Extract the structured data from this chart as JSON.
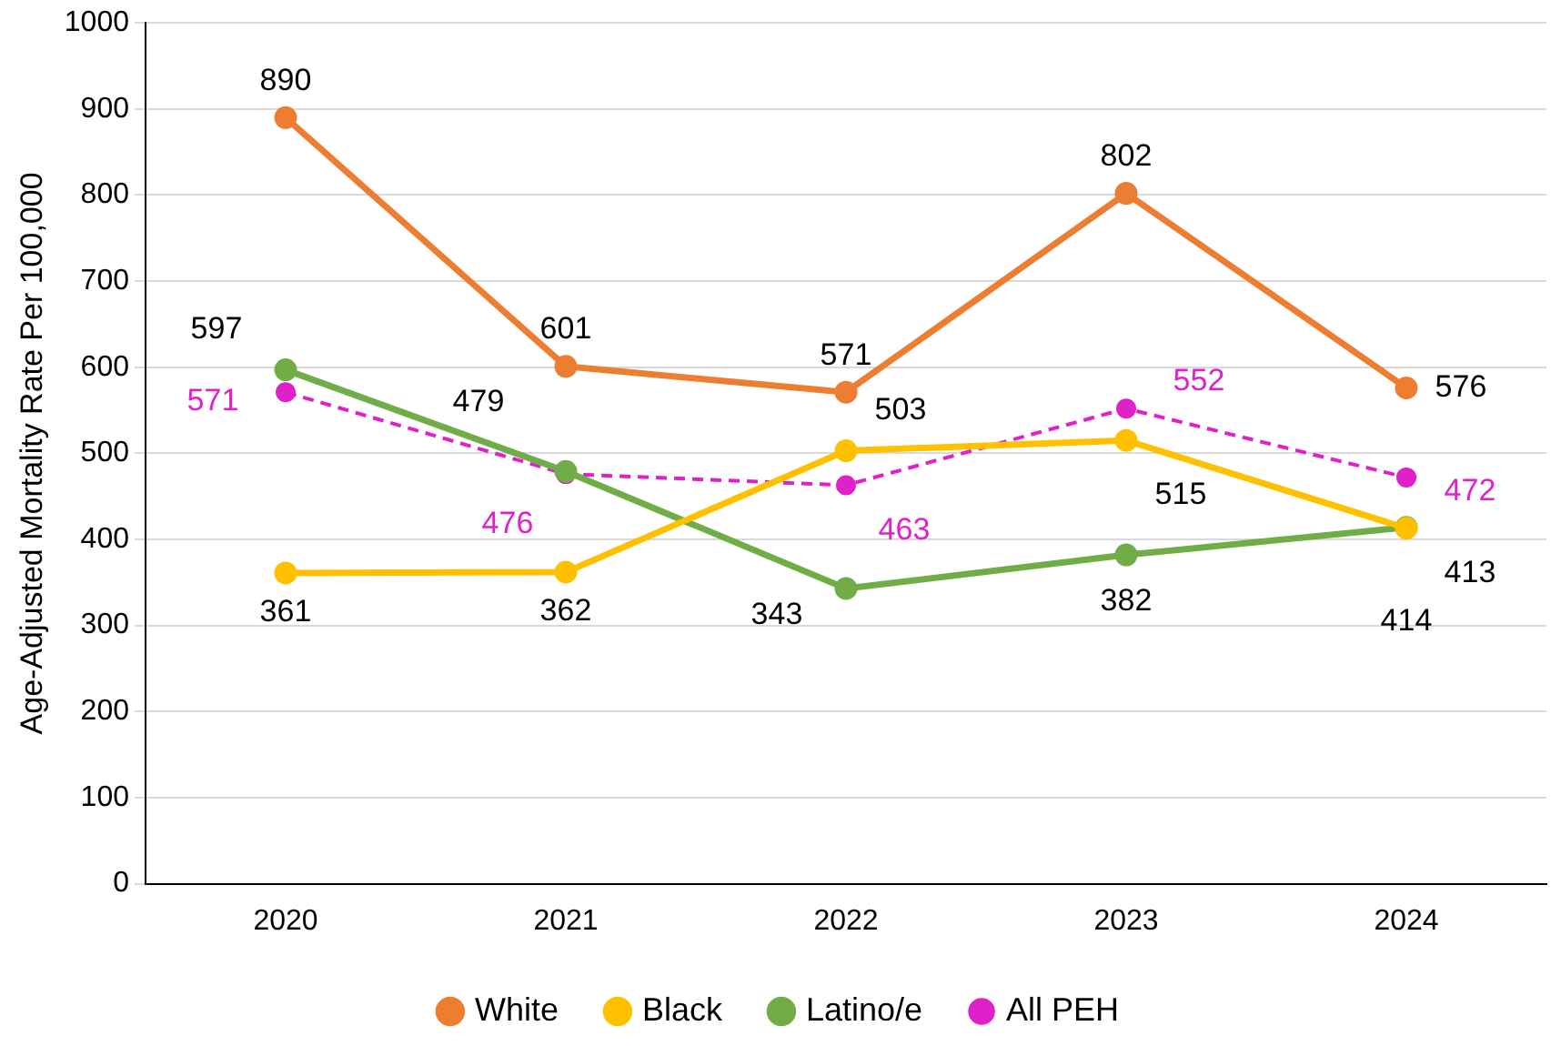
{
  "chart_data": {
    "type": "line",
    "ylabel": "Age-Adjusted Mortality Rate Per 100,000",
    "categories": [
      "2020",
      "2021",
      "2022",
      "2023",
      "2024"
    ],
    "series": [
      {
        "name": "White",
        "color": "#ed7d31",
        "values": [
          890,
          601,
          571,
          802,
          576
        ]
      },
      {
        "name": "Black",
        "color": "#ffc000",
        "values": [
          361,
          362,
          503,
          515,
          413
        ]
      },
      {
        "name": "Latino/e",
        "color": "#70ad47",
        "values": [
          597,
          479,
          343,
          382,
          414
        ]
      },
      {
        "name": "All PEH",
        "color": "#e020c8",
        "values": [
          571,
          476,
          463,
          552,
          472
        ],
        "line_style": "dashed"
      }
    ],
    "ylim": [
      0,
      1000
    ],
    "yticks": [
      0,
      100,
      200,
      300,
      400,
      500,
      600,
      700,
      800,
      900,
      1000
    ],
    "grid": "y",
    "legend": "bottom",
    "marker": "circle",
    "data_labels": true
  }
}
